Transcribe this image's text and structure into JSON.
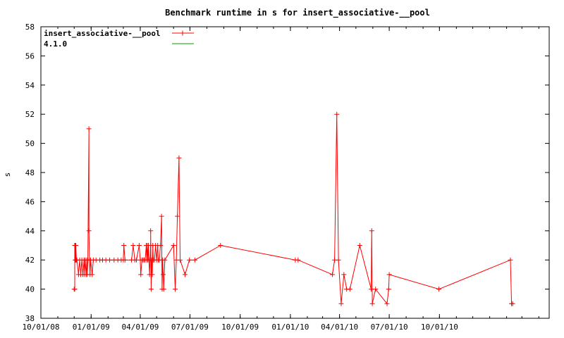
{
  "chart_data": {
    "type": "line",
    "title": "Benchmark runtime in s for insert_associative-__pool",
    "xlabel": "",
    "ylabel": "s",
    "x_tick_labels": [
      "10/01/08",
      "01/01/09",
      "04/01/09",
      "07/01/09",
      "10/01/09",
      "01/01/10",
      "04/01/10",
      "07/01/10",
      "10/01/10"
    ],
    "x_tick_dates": [
      "2008-10-01",
      "2009-01-01",
      "2009-04-01",
      "2009-07-01",
      "2009-10-01",
      "2010-01-01",
      "2010-04-01",
      "2010-07-01",
      "2010-10-01"
    ],
    "xlim": [
      "2008-10-01",
      "2011-04-20"
    ],
    "ylim": [
      38,
      58
    ],
    "y_ticks": [
      38,
      40,
      42,
      44,
      46,
      48,
      50,
      52,
      54,
      56,
      58
    ],
    "grid": false,
    "legend_position": "top-left",
    "series": [
      {
        "name": "insert_associative-__pool",
        "color": "#ff0000",
        "marker": "plus",
        "points": [
          [
            "2008-12-01",
            40
          ],
          [
            "2008-12-02",
            40
          ],
          [
            "2008-12-02",
            43
          ],
          [
            "2008-12-03",
            42
          ],
          [
            "2008-12-03",
            43
          ],
          [
            "2008-12-04",
            42
          ],
          [
            "2008-12-04",
            43
          ],
          [
            "2008-12-05",
            42
          ],
          [
            "2008-12-06",
            42
          ],
          [
            "2008-12-09",
            41
          ],
          [
            "2008-12-11",
            42
          ],
          [
            "2008-12-13",
            41
          ],
          [
            "2008-12-15",
            42
          ],
          [
            "2008-12-17",
            41
          ],
          [
            "2008-12-19",
            42
          ],
          [
            "2008-12-20",
            41
          ],
          [
            "2008-12-21",
            42
          ],
          [
            "2008-12-23",
            41
          ],
          [
            "2008-12-24",
            42
          ],
          [
            "2008-12-25",
            41
          ],
          [
            "2008-12-26",
            42
          ],
          [
            "2008-12-28",
            51
          ],
          [
            "2008-12-28",
            44
          ],
          [
            "2008-12-29",
            42
          ],
          [
            "2008-12-30",
            41
          ],
          [
            "2008-12-31",
            42
          ],
          [
            "2009-01-03",
            41
          ],
          [
            "2009-01-05",
            42
          ],
          [
            "2009-01-10",
            42
          ],
          [
            "2009-01-17",
            42
          ],
          [
            "2009-01-22",
            42
          ],
          [
            "2009-01-28",
            42
          ],
          [
            "2009-02-04",
            42
          ],
          [
            "2009-02-12",
            42
          ],
          [
            "2009-02-19",
            42
          ],
          [
            "2009-02-25",
            42
          ],
          [
            "2009-03-01",
            42
          ],
          [
            "2009-03-02",
            43
          ],
          [
            "2009-03-04",
            42
          ],
          [
            "2009-03-16",
            42
          ],
          [
            "2009-03-19",
            43
          ],
          [
            "2009-03-22",
            42
          ],
          [
            "2009-03-25",
            42
          ],
          [
            "2009-03-30",
            43
          ],
          [
            "2009-04-01",
            42
          ],
          [
            "2009-04-02",
            41
          ],
          [
            "2009-04-04",
            42
          ],
          [
            "2009-04-06",
            42
          ],
          [
            "2009-04-08",
            42
          ],
          [
            "2009-04-10",
            42
          ],
          [
            "2009-04-12",
            43
          ],
          [
            "2009-04-13",
            42
          ],
          [
            "2009-04-14",
            43
          ],
          [
            "2009-04-15",
            42
          ],
          [
            "2009-04-16",
            43
          ],
          [
            "2009-04-17",
            42
          ],
          [
            "2009-04-18",
            41
          ],
          [
            "2009-04-19",
            42
          ],
          [
            "2009-04-20",
            43
          ],
          [
            "2009-04-20",
            44
          ],
          [
            "2009-04-21",
            40
          ],
          [
            "2009-04-22",
            42
          ],
          [
            "2009-04-23",
            41
          ],
          [
            "2009-04-24",
            43
          ],
          [
            "2009-04-25",
            42
          ],
          [
            "2009-04-27",
            42
          ],
          [
            "2009-04-29",
            43
          ],
          [
            "2009-05-01",
            42
          ],
          [
            "2009-05-03",
            43
          ],
          [
            "2009-05-04",
            42
          ],
          [
            "2009-05-06",
            42
          ],
          [
            "2009-05-08",
            43
          ],
          [
            "2009-05-10",
            45
          ],
          [
            "2009-05-11",
            40
          ],
          [
            "2009-05-12",
            42
          ],
          [
            "2009-05-13",
            41
          ],
          [
            "2009-05-14",
            40
          ],
          [
            "2009-05-16",
            42
          ],
          [
            "2009-06-01",
            43
          ],
          [
            "2009-06-04",
            40
          ],
          [
            "2009-06-06",
            42
          ],
          [
            "2009-06-08",
            45
          ],
          [
            "2009-06-11",
            49
          ],
          [
            "2009-06-13",
            42
          ],
          [
            "2009-06-22",
            41
          ],
          [
            "2009-06-30",
            42
          ],
          [
            "2009-07-10",
            42
          ],
          [
            "2009-08-26",
            43
          ],
          [
            "2010-01-10",
            42
          ],
          [
            "2010-01-15",
            42
          ],
          [
            "2010-03-19",
            41
          ],
          [
            "2010-03-23",
            42
          ],
          [
            "2010-03-27",
            52
          ],
          [
            "2010-03-30",
            42
          ],
          [
            "2010-04-04",
            39
          ],
          [
            "2010-04-09",
            41
          ],
          [
            "2010-04-14",
            40
          ],
          [
            "2010-04-20",
            40
          ],
          [
            "2010-05-08",
            43
          ],
          [
            "2010-05-29",
            40
          ],
          [
            "2010-05-30",
            44
          ],
          [
            "2010-05-31",
            39
          ],
          [
            "2010-06-06",
            40
          ],
          [
            "2010-06-27",
            39
          ],
          [
            "2010-06-30",
            40
          ],
          [
            "2010-07-01",
            41
          ],
          [
            "2010-09-30",
            40
          ],
          [
            "2011-02-08",
            42
          ],
          [
            "2011-02-10",
            39
          ],
          [
            "2011-02-12",
            39
          ]
        ]
      },
      {
        "name": "4.1.0",
        "color": "#00a000",
        "marker": "none",
        "points": []
      }
    ]
  }
}
